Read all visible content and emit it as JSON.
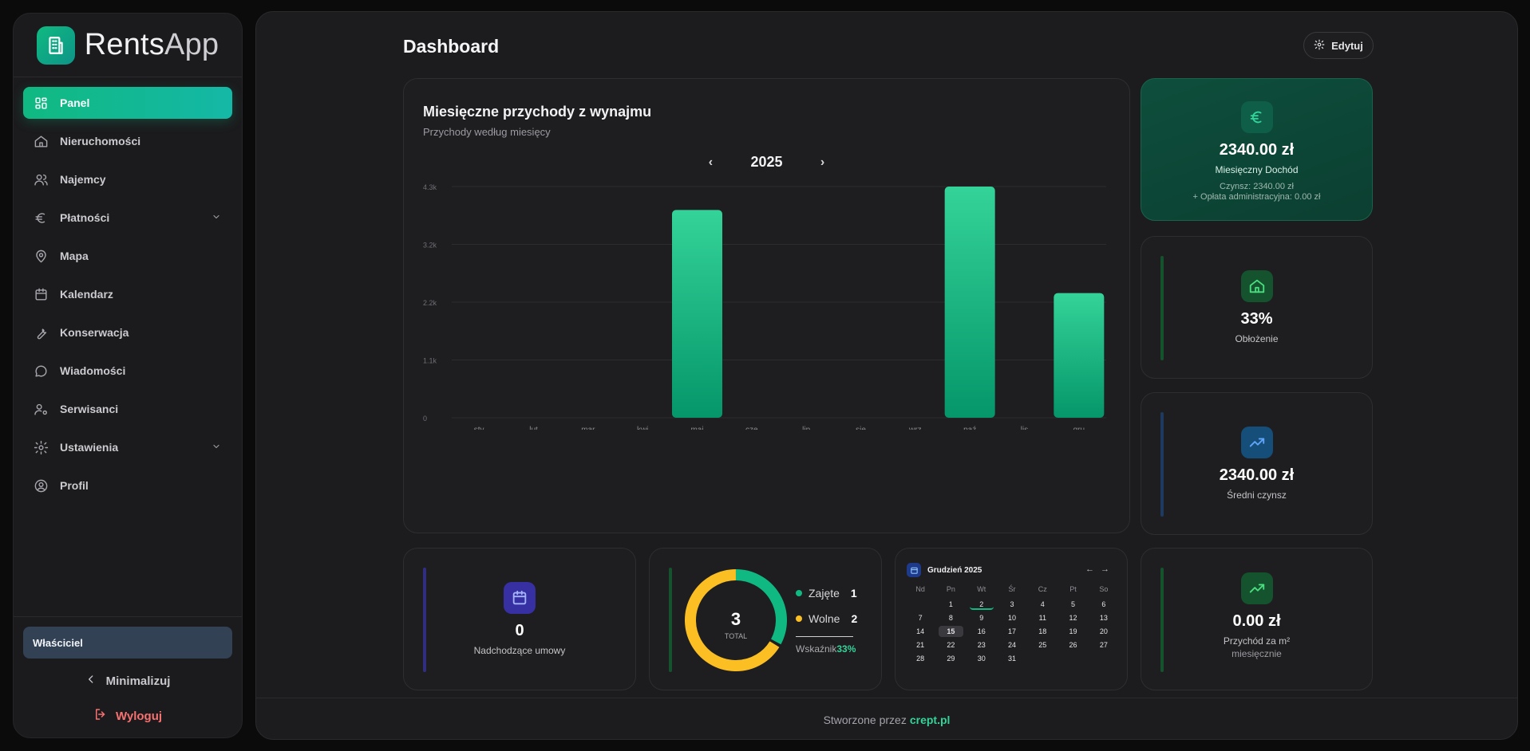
{
  "brand": {
    "name_bold": "Rents",
    "name_light": "App"
  },
  "sidebar": {
    "items": [
      {
        "label": "Panel",
        "icon": "grid-icon",
        "active": true
      },
      {
        "label": "Nieruchomości",
        "icon": "home-icon"
      },
      {
        "label": "Najemcy",
        "icon": "users-icon"
      },
      {
        "label": "Płatności",
        "icon": "euro-icon",
        "expandable": true
      },
      {
        "label": "Mapa",
        "icon": "map-pin-icon"
      },
      {
        "label": "Kalendarz",
        "icon": "calendar-icon"
      },
      {
        "label": "Konserwacja",
        "icon": "wrench-icon"
      },
      {
        "label": "Wiadomości",
        "icon": "message-icon"
      },
      {
        "label": "Serwisanci",
        "icon": "user-cog-icon"
      },
      {
        "label": "Ustawienia",
        "icon": "gear-icon",
        "expandable": true
      },
      {
        "label": "Profil",
        "icon": "user-circle-icon"
      }
    ],
    "role": "Właściciel",
    "minimize": "Minimalizuj",
    "logout": "Wyloguj"
  },
  "header": {
    "title": "Dashboard",
    "edit": "Edytuj"
  },
  "revenue_chart": {
    "title": "Miesięczne przychody z wynajmu",
    "subtitle": "Przychody według miesięcy",
    "year": "2025"
  },
  "chart_data": {
    "type": "bar",
    "title": "Miesięczne przychody z wynajmu",
    "subtitle": "Przychody według miesięcy",
    "categories": [
      "sty",
      "lut",
      "mar",
      "kwi",
      "maj",
      "cze",
      "lip",
      "sie",
      "wrz",
      "paź",
      "lis",
      "gru"
    ],
    "values": [
      0,
      0,
      0,
      0,
      3900,
      0,
      0,
      0,
      0,
      4340,
      0,
      2340
    ],
    "ylim": [
      0,
      4340
    ],
    "yticks": [
      0,
      1085,
      2170,
      3255,
      4340
    ],
    "ytick_labels": [
      "0",
      "1.1k",
      "2.2k",
      "3.2k",
      "4.3k"
    ],
    "grid": true,
    "colors": {
      "bar_top": "#34d399",
      "bar_bottom": "#059669"
    }
  },
  "stats": {
    "income": {
      "value": "2340.00 zł",
      "label": "Miesięczny Dochód",
      "rent": "Czynsz: 2340.00 zł",
      "fee": "+ Opłata administracyjna: 0.00 zł",
      "icon": "euro-icon"
    },
    "occupancy": {
      "value": "33%",
      "label": "Obłożenie",
      "icon": "home-icon"
    },
    "avg_rent": {
      "value": "2340.00 zł",
      "label": "Średni czynsz",
      "icon": "trending-up-icon"
    },
    "per_m2": {
      "value": "0.00 zł",
      "label": "Przychód za m²",
      "label2": "miesięcznie",
      "icon": "trending-up-icon"
    }
  },
  "contracts": {
    "value": "0",
    "label": "Nadchodzące umowy",
    "icon": "calendar-icon"
  },
  "occupancy_donut": {
    "total": "3",
    "total_label": "TOTAL",
    "occupied_label": "Zajęte",
    "occupied": 1,
    "free_label": "Wolne",
    "free": 2,
    "index_label": "Wskaźnik",
    "index_value": "33%",
    "colors": {
      "occupied": "#10b981",
      "free": "#fbbf24"
    }
  },
  "calendar": {
    "title": "Grudzień 2025",
    "prev": "←",
    "next": "→",
    "weekdays": [
      "Nd",
      "Pn",
      "Wt",
      "Śr",
      "Cz",
      "Pt",
      "So"
    ],
    "first_offset": 1,
    "days": 31,
    "today": 15,
    "marked": 2
  },
  "footer": {
    "prefix": "Stworzone przez",
    "link": "crept.pl"
  }
}
